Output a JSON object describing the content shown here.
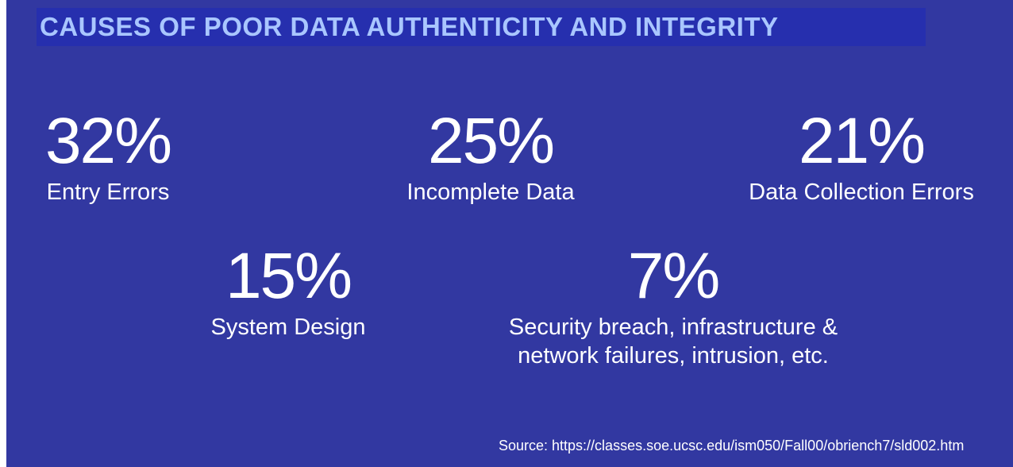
{
  "title": "CAUSES OF POOR DATA AUTHENTICITY AND INTEGRITY",
  "stats": [
    {
      "percent": "32%",
      "label": "Entry Errors"
    },
    {
      "percent": "25%",
      "label": "Incomplete Data"
    },
    {
      "percent": "21%",
      "label": "Data Collection Errors"
    },
    {
      "percent": "15%",
      "label": "System Design"
    },
    {
      "percent": "7%",
      "label_line1": "Security breach, infrastructure &",
      "label_line2": "network failures, intrusion, etc."
    }
  ],
  "source": "Source: https://classes.soe.ucsc.edu/ism050/Fall00/obriench7/sld002.htm",
  "colors": {
    "background": "#3238a1",
    "title_bar": "#262fae",
    "title_text": "#a9c6ff",
    "text": "#ffffff"
  }
}
